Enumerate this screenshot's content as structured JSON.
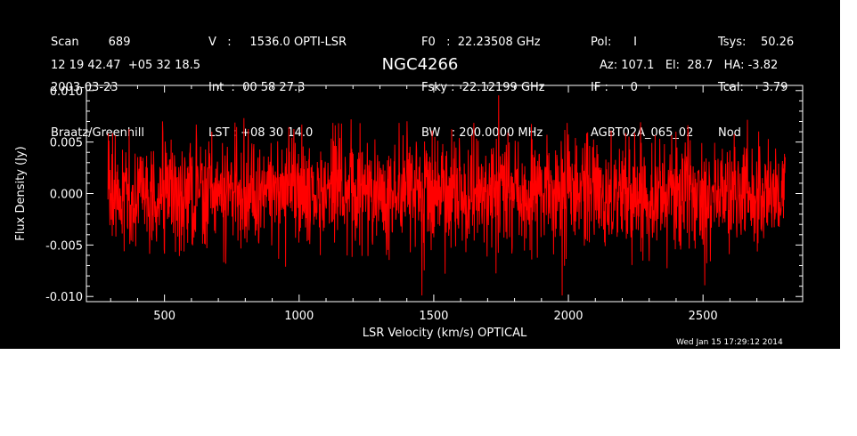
{
  "header": {
    "col1": [
      "Scan        689",
      "2003-03-23",
      "Braatz/Greenhill"
    ],
    "col2": [
      "V   :     1536.0 OPTI-LSR",
      "Int  :  00 58 27.3",
      "LST : +08 30 14.0"
    ],
    "col3": [
      "F0   :  22.23508 GHz",
      "Fsky :  22.12199 GHz",
      "BW   : 200.0000 MHz"
    ],
    "col4": [
      "Pol:      I",
      "IF :      0",
      "AGBT02A_065_02"
    ],
    "col5": [
      "Tsys:    50.26",
      "Tcal:     3.79",
      "Nod"
    ],
    "coords": "12 19 42.47  +05 32 18.5",
    "source": "NGC4266",
    "pointing": "Az: 107.1   El:  28.7   HA: -3.82"
  },
  "footer": {
    "date": "Wed Jan 15 17:29:12 2014"
  },
  "colors": {
    "background": "#000000",
    "axes": "#ffffff",
    "trace": "#ff0000",
    "page": "#ffffff"
  },
  "chart_data": {
    "type": "line",
    "title": "NGC4266",
    "xlabel": "LSR Velocity (km/s) OPTICAL",
    "ylabel": "Flux Density (Jy)",
    "xlim": [
      210,
      2870
    ],
    "ylim": [
      -0.0105,
      0.0105
    ],
    "xticks": [
      500,
      1000,
      1500,
      2000,
      2500
    ],
    "xtick_labels": [
      "500",
      "1000",
      "1500",
      "2000",
      "2500"
    ],
    "yticks": [
      -0.01,
      -0.005,
      0.0,
      0.005,
      0.01
    ],
    "ytick_labels": [
      "-0.010",
      "-0.005",
      "0.000",
      "0.005",
      "0.010"
    ],
    "grid": false,
    "series": [
      {
        "color": "#ff0000",
        "x_start": 290,
        "x_end": 2805,
        "mean": 0.0,
        "rms": 0.0027,
        "min": -0.0099,
        "max": 0.0097,
        "n_channels": 2048
      }
    ]
  }
}
